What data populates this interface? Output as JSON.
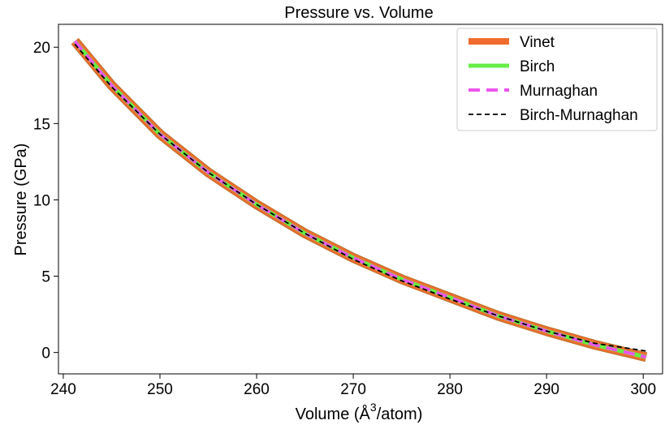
{
  "chart_data": {
    "type": "line",
    "title": "Pressure vs. Volume",
    "xlabel_pre": "Volume (Å",
    "xlabel_sup": "3",
    "xlabel_post": "/atom)",
    "ylabel": "Pressure (GPa)",
    "xlim": [
      239.5,
      302
    ],
    "ylim": [
      -1.4,
      21.5
    ],
    "xticks": [
      240,
      250,
      260,
      270,
      280,
      290,
      300
    ],
    "yticks": [
      0,
      5,
      10,
      15,
      20
    ],
    "grid": false,
    "legend_position": "top-right",
    "series": [
      {
        "name": "Vinet",
        "color": "#f26b2e",
        "style": "solid",
        "x": [
          241.2,
          245,
          250,
          255,
          260,
          265,
          270,
          275,
          280,
          285,
          290,
          295,
          300.3
        ],
        "y": [
          20.4,
          17.5,
          14.3,
          11.8,
          9.7,
          7.8,
          6.2,
          4.8,
          3.6,
          2.4,
          1.4,
          0.5,
          -0.3
        ]
      },
      {
        "name": "Birch",
        "color": "#66ee44",
        "style": "solid",
        "x": [
          241.2,
          245,
          250,
          255,
          260,
          265,
          270,
          275,
          280,
          285,
          290,
          295,
          300.3
        ],
        "y": [
          20.4,
          17.5,
          14.3,
          11.8,
          9.7,
          7.8,
          6.2,
          4.8,
          3.6,
          2.4,
          1.4,
          0.5,
          -0.3
        ]
      },
      {
        "name": "Murnaghan",
        "color": "#ee55ee",
        "style": "dashed",
        "x": [
          241.2,
          245,
          250,
          255,
          260,
          265,
          270,
          275,
          280,
          285,
          290,
          295,
          300.3
        ],
        "y": [
          20.4,
          17.5,
          14.3,
          11.8,
          9.7,
          7.8,
          6.2,
          4.8,
          3.6,
          2.4,
          1.4,
          0.5,
          -0.3
        ]
      },
      {
        "name": "Birch-Murnaghan",
        "color": "#000000",
        "style": "dashed",
        "x": [
          241.2,
          245,
          250,
          255,
          260,
          265,
          270,
          275,
          280,
          285,
          290,
          295,
          300.3
        ],
        "y": [
          20.2,
          17.4,
          14.3,
          11.8,
          9.7,
          7.8,
          6.1,
          4.7,
          3.5,
          2.4,
          1.4,
          0.6,
          0.1
        ]
      }
    ]
  }
}
